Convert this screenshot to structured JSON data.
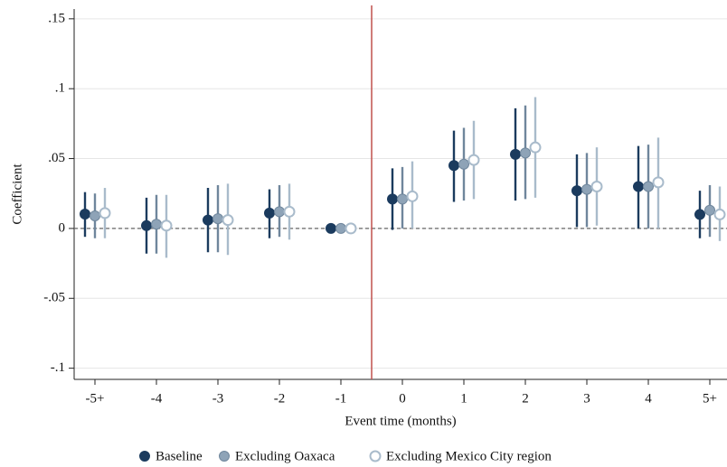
{
  "chart_data": {
    "type": "coefplot",
    "x_label": "Event time (months)",
    "y_label": "Coefficient",
    "categories": [
      "-5+",
      "-4",
      "-3",
      "-2",
      "-1",
      "0",
      "1",
      "2",
      "3",
      "4",
      "5+"
    ],
    "ylim": [
      -0.108,
      0.157
    ],
    "yticks": [
      {
        "value": 0.15,
        "label": ".15"
      },
      {
        "value": 0.1,
        "label": ".1"
      },
      {
        "value": 0.05,
        "label": ".05"
      },
      0,
      {
        "value": -0.05,
        "label": "-.05"
      },
      {
        "value": -0.1,
        "label": "-.1"
      }
    ],
    "grid": true,
    "reference_line_y": 0,
    "vline_position": 4.5,
    "vline_color": "#c0504d",
    "legend_position": "bottom",
    "series": [
      {
        "name": "Baseline",
        "color": "#1b3b5e",
        "bar_color": "#1b3b5e",
        "marker": "filled",
        "values": [
          0.0103,
          0.002,
          0.006,
          0.011,
          0,
          0.021,
          0.045,
          0.053,
          0.027,
          0.03,
          0.01
        ],
        "ci_low": [
          -0.006,
          -0.018,
          -0.017,
          -0.007,
          0,
          -0.001,
          0.019,
          0.02,
          0.001,
          0,
          -0.007
        ],
        "ci_high": [
          0.026,
          0.022,
          0.029,
          0.028,
          0,
          0.043,
          0.07,
          0.086,
          0.053,
          0.059,
          0.027
        ]
      },
      {
        "name": "Excluding Oaxaca",
        "color": "#8ea3b7",
        "bar_color": "#6f869c",
        "marker": "filled",
        "values": [
          0.009,
          0.003,
          0.007,
          0.012,
          0,
          0.021,
          0.046,
          0.054,
          0.028,
          0.03,
          0.013
        ],
        "ci_low": [
          -0.007,
          -0.018,
          -0.017,
          -0.006,
          0,
          0,
          0.02,
          0.021,
          0.001,
          0,
          -0.006
        ],
        "ci_high": [
          0.025,
          0.024,
          0.031,
          0.031,
          0,
          0.044,
          0.072,
          0.088,
          0.054,
          0.06,
          0.031
        ]
      },
      {
        "name": "Excluding Mexico City region",
        "color": "#a9bbcb",
        "bar_color": "#a9bbcb",
        "marker": "hollow",
        "values": [
          0.011,
          0.002,
          0.006,
          0.012,
          0,
          0.023,
          0.049,
          0.058,
          0.03,
          0.033,
          0.01
        ],
        "ci_low": [
          -0.007,
          -0.021,
          -0.019,
          -0.008,
          0,
          0,
          0.021,
          0.022,
          0.002,
          0,
          -0.009
        ],
        "ci_high": [
          0.029,
          0.024,
          0.032,
          0.032,
          0,
          0.048,
          0.077,
          0.094,
          0.058,
          0.065,
          0.03
        ]
      }
    ]
  }
}
